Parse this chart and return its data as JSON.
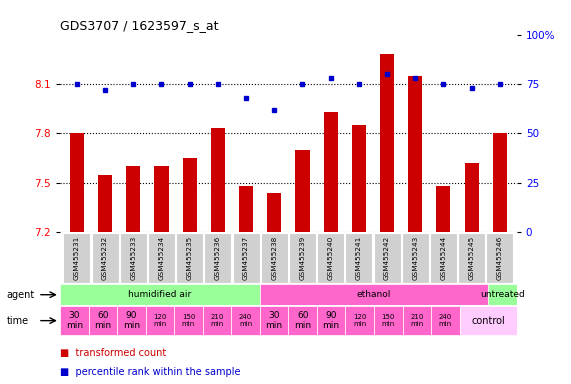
{
  "title": "GDS3707 / 1623597_s_at",
  "samples": [
    "GSM455231",
    "GSM455232",
    "GSM455233",
    "GSM455234",
    "GSM455235",
    "GSM455236",
    "GSM455237",
    "GSM455238",
    "GSM455239",
    "GSM455240",
    "GSM455241",
    "GSM455242",
    "GSM455243",
    "GSM455244",
    "GSM455245",
    "GSM455246"
  ],
  "bar_values": [
    7.8,
    7.55,
    7.6,
    7.6,
    7.65,
    7.83,
    7.48,
    7.44,
    7.7,
    7.93,
    7.85,
    8.28,
    8.15,
    7.48,
    7.62,
    7.8
  ],
  "dot_values": [
    75,
    72,
    75,
    75,
    75,
    75,
    68,
    62,
    75,
    78,
    75,
    80,
    78,
    75,
    73,
    75
  ],
  "ylim_left": [
    7.2,
    8.4
  ],
  "ylim_right": [
    0,
    100
  ],
  "yticks_left": [
    7.2,
    7.5,
    7.8,
    8.1
  ],
  "yticks_right": [
    0,
    25,
    50,
    75,
    100
  ],
  "bar_color": "#cc0000",
  "dot_color": "#0000cc",
  "agent_groups": [
    {
      "label": "humidified air",
      "start": 0,
      "end": 7,
      "color": "#99ff99"
    },
    {
      "label": "ethanol",
      "start": 7,
      "end": 15,
      "color": "#ff66cc"
    },
    {
      "label": "untreated",
      "start": 15,
      "end": 16,
      "color": "#99ff99"
    }
  ],
  "time_labels": [
    "30\nmin",
    "60\nmin",
    "90\nmin",
    "120\nmin",
    "150\nmin",
    "210\nmin",
    "240\nmin",
    "30\nmin",
    "60\nmin",
    "90\nmin",
    "120\nmin",
    "150\nmin",
    "210\nmin",
    "240\nmin"
  ],
  "time_bold": [
    true,
    true,
    true,
    false,
    false,
    false,
    false,
    true,
    true,
    true,
    false,
    false,
    false,
    false
  ],
  "time_color_bg": "#ff66cc",
  "control_label": "control",
  "control_bg": "#ffccff",
  "agent_label": "agent",
  "time_label": "time",
  "legend_bar_label": "transformed count",
  "legend_dot_label": "percentile rank within the sample",
  "sample_box_color": "#d0d0d0",
  "sample_box_edge": "#ffffff"
}
